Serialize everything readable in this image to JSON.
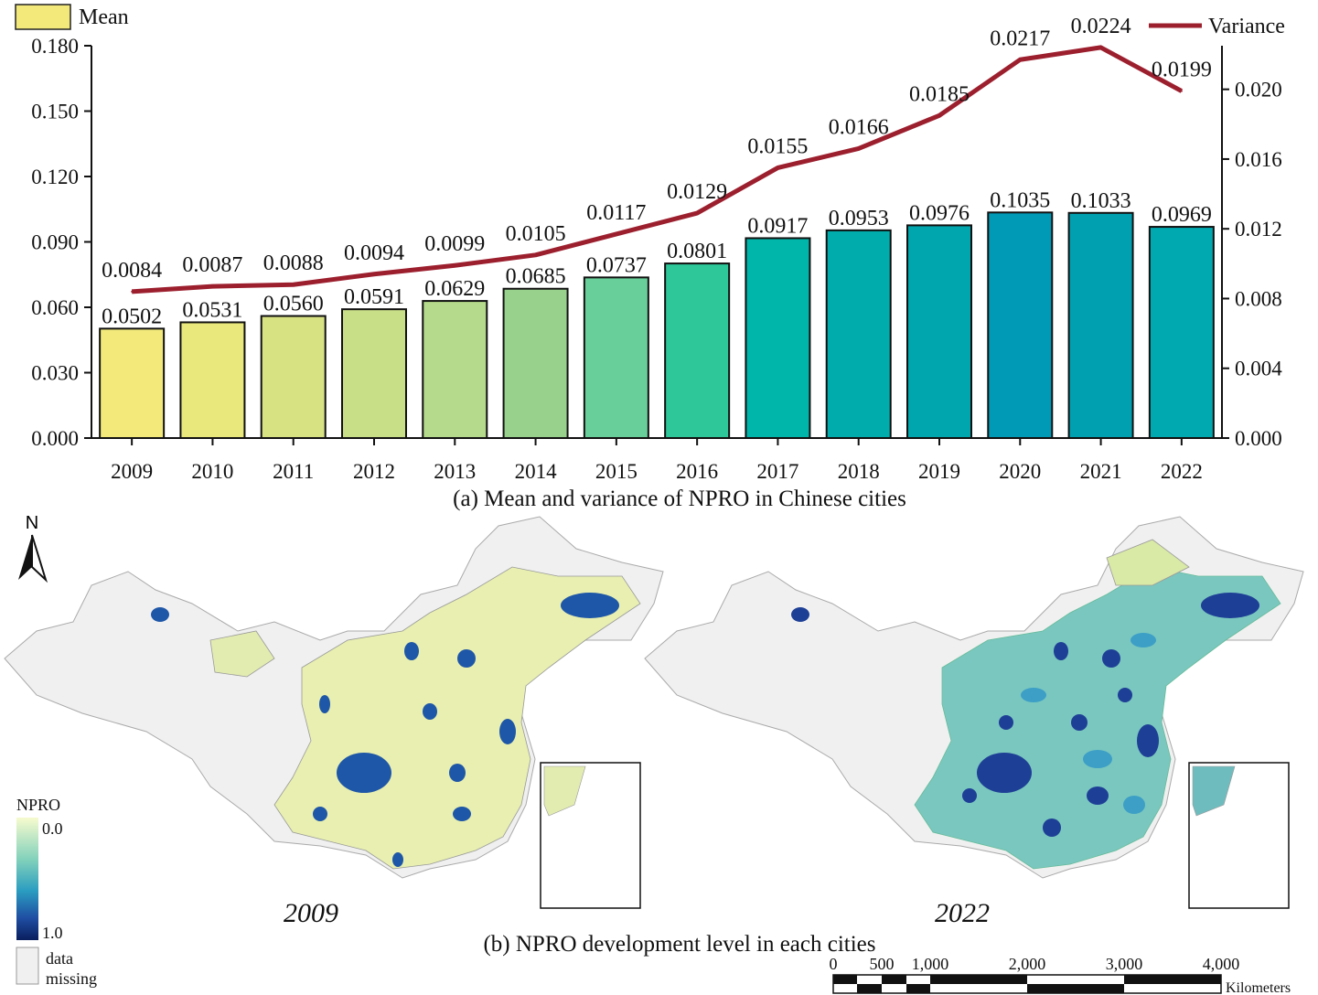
{
  "chart_data": {
    "type": "bar",
    "caption": "(a) Mean and variance of NPRO in Chinese cities",
    "categories": [
      "2009",
      "2010",
      "2011",
      "2012",
      "2013",
      "2014",
      "2015",
      "2016",
      "2017",
      "2018",
      "2019",
      "2020",
      "2021",
      "2022"
    ],
    "series": [
      {
        "name": "Mean",
        "type": "bar",
        "axis": "left",
        "values": [
          0.0502,
          0.0531,
          0.056,
          0.0591,
          0.0629,
          0.0685,
          0.0737,
          0.0801,
          0.0917,
          0.0953,
          0.0976,
          0.1035,
          0.1033,
          0.0969
        ],
        "labels": [
          "0.0502",
          "0.0531",
          "0.0560",
          "0.0591",
          "0.0629",
          "0.0685",
          "0.0737",
          "0.0801",
          "0.0917",
          "0.0953",
          "0.0976",
          "0.1035",
          "0.1033",
          "0.0969"
        ],
        "colors": [
          "#f2e97a",
          "#e8e87c",
          "#d7e283",
          "#c8df88",
          "#b5da8b",
          "#98d18c",
          "#68cf9a",
          "#2dc799",
          "#00b5aa",
          "#00adac",
          "#00a6ad",
          "#009ab7",
          "#00a0b0",
          "#00a8b0"
        ]
      },
      {
        "name": "Variance",
        "type": "line",
        "axis": "right",
        "color": "#9c1f2e",
        "values": [
          0.0084,
          0.0087,
          0.0088,
          0.0094,
          0.0099,
          0.0105,
          0.0117,
          0.0129,
          0.0155,
          0.0166,
          0.0185,
          0.0217,
          0.0224,
          0.0199
        ],
        "labels": [
          "0.0084",
          "0.0087",
          "0.0088",
          "0.0094",
          "0.0099",
          "0.0105",
          "0.0117",
          "0.0129",
          "0.0155",
          "0.0166",
          "0.0185",
          "0.0217",
          "0.0224",
          "0.0199"
        ]
      }
    ],
    "y_left": {
      "range": [
        0,
        0.18
      ],
      "ticks": [
        "0.000",
        "0.030",
        "0.060",
        "0.090",
        "0.120",
        "0.150",
        "0.180"
      ]
    },
    "y_right": {
      "range": [
        0,
        0.0225
      ],
      "ticks": [
        "0.000",
        "0.004",
        "0.008",
        "0.012",
        "0.016",
        "0.020"
      ]
    },
    "legend": {
      "mean_label": "Mean",
      "variance_label": "Variance"
    }
  },
  "maps": {
    "caption": "(b) NPRO development level in each cities",
    "left_year": "2009",
    "right_year": "2022",
    "north_label": "N",
    "legend_title": "NPRO",
    "legend_min": "0.0",
    "legend_max": "1.0",
    "missing_label_1": "data",
    "missing_label_2": "missing",
    "scale_ticks": [
      "0",
      "500",
      "1,000",
      "2,000",
      "3,000",
      "4,000"
    ],
    "scale_unit": "Kilometers",
    "colors": {
      "low": "#f4f7c8",
      "mid": "#3fb4c2",
      "high": "#0c2373",
      "missing": "#f0f0f0"
    }
  }
}
